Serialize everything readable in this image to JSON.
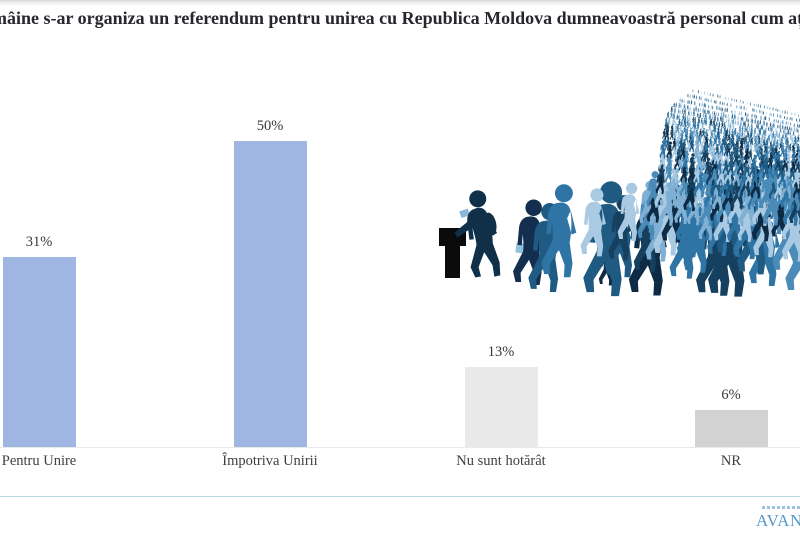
{
  "page": {
    "kind": "survey-results-slide",
    "background": "#ffffff"
  },
  "chart_data": {
    "type": "bar",
    "title": "mâine s-ar organiza un referendum pentru unirea cu Republica Moldova dumneavoastră personal cum aț",
    "title_note": "question text is clipped at both left and right edges of the screenshot",
    "categories": [
      "Pentru Unire",
      "Împotriva Unirii",
      "Nu sunt hotărât",
      "NR"
    ],
    "values": [
      31,
      50,
      13,
      6
    ],
    "value_labels": [
      "31%",
      "50%",
      "13%",
      "6%"
    ],
    "bar_colors": [
      "#9eb6e1",
      "#9eb6e1",
      "#e9e9e9",
      "#d2d2d2"
    ],
    "xlabel": "",
    "ylabel": "",
    "ylim": [
      0,
      55
    ],
    "grid": false,
    "legend": false,
    "axis_line_color": "#e9e9e9",
    "label_color": "#3f3f3f"
  },
  "illustration": {
    "name": "crowd-walking-to-ballot-box",
    "ballot_box_color": "#0b0b0b",
    "ballot_color": "#8ab8da",
    "palette": [
      "#0d2b45",
      "#16405f",
      "#1e5a82",
      "#2e74a4",
      "#4a8bb8",
      "#7fb0d4",
      "#a9cae2"
    ]
  },
  "footer": {
    "divider_color": "#b9d6e9",
    "logo_text_visible": "AVAN",
    "logo_note": "logo clipped at right edge",
    "logo_color": "#549ac6"
  }
}
